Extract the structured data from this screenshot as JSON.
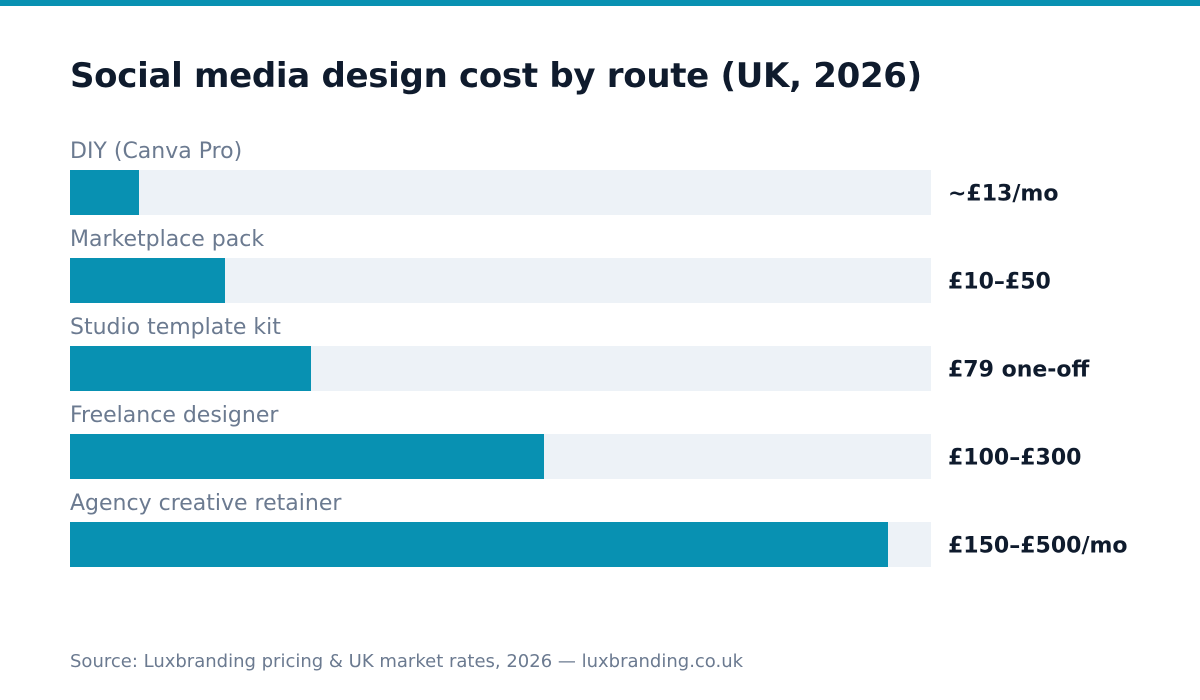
{
  "colors": {
    "accent": "#0891b2",
    "track": "#edf2f7",
    "title": "#0f1b2d",
    "muted": "#6b7a90"
  },
  "chart_data": {
    "type": "bar",
    "orientation": "horizontal",
    "title": "Social media design cost by route (UK, 2026)",
    "categories": [
      "DIY (Canva Pro)",
      "Marketplace pack",
      "Studio template kit",
      "Freelance designer",
      "Agency creative retainer"
    ],
    "value_labels": [
      "~£13/mo",
      "£10–£50",
      "£79 one-off",
      "£100–£300",
      "£150–£500/mo"
    ],
    "values": [
      0.08,
      0.18,
      0.28,
      0.55,
      0.95
    ],
    "value_scale": "relative bar fill (fraction of track)",
    "grid": false,
    "legend": "none"
  },
  "source": "Source: Luxbranding pricing & UK market rates, 2026 — luxbranding.co.uk"
}
